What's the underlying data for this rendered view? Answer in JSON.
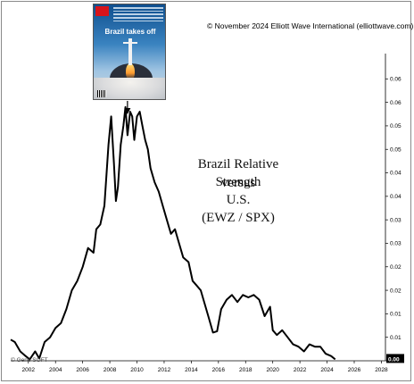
{
  "copyright": "© November 2024 Elliott Wave International (elliottwave.com)",
  "watermark": "© Gene SOFT",
  "annotation": {
    "lines": [
      "Brazil Relative Strength",
      "versus",
      "U.S.",
      "(EWZ / SPX)"
    ]
  },
  "cover": {
    "brand": "The Economist",
    "title": "Brazil takes off"
  },
  "colors": {
    "line": "#000000",
    "axis_box": "#222222"
  },
  "chart_data": {
    "type": "line",
    "title": "",
    "xlabel": "",
    "ylabel": "",
    "xlim": [
      2000.7,
      2028.3
    ],
    "ylim": [
      0.0,
      0.065
    ],
    "x_ticks": [
      "2002",
      "2004",
      "2006",
      "2008",
      "2010",
      "2012",
      "2014",
      "2016",
      "2018",
      "2020",
      "2022",
      "2024",
      "2026",
      "2028"
    ],
    "y_ticks": [
      "0.06",
      "0.06",
      "0.05",
      "0.05",
      "0.04",
      "0.04",
      "0.03",
      "0.03",
      "0.02",
      "0.02",
      "0.01",
      "0.01",
      "0.00"
    ],
    "y_tick_values": [
      0.06,
      0.055,
      0.05,
      0.045,
      0.04,
      0.035,
      0.03,
      0.025,
      0.02,
      0.015,
      0.01,
      0.005,
      0.0
    ],
    "last_value_label": "0.00",
    "series": [
      {
        "x": [
          2000.7,
          2001.0,
          2001.4,
          2001.8,
          2002.1,
          2002.5,
          2002.8,
          2003.2,
          2003.6,
          2004.0,
          2004.4,
          2004.8,
          2005.2,
          2005.6,
          2006.0,
          2006.4,
          2006.8,
          2007.0,
          2007.3,
          2007.6,
          2007.9,
          2008.1,
          2008.3,
          2008.45,
          2008.6,
          2008.8,
          2009.0,
          2009.15,
          2009.3,
          2009.5,
          2009.65,
          2009.8,
          2010.0,
          2010.2,
          2010.4,
          2010.6,
          2010.8,
          2011.0,
          2011.3,
          2011.6,
          2011.9,
          2012.2,
          2012.5,
          2012.8,
          2013.1,
          2013.4,
          2013.8,
          2014.1,
          2014.4,
          2014.7,
          2015.0,
          2015.3,
          2015.6,
          2015.9,
          2016.2,
          2016.6,
          2017.0,
          2017.4,
          2017.8,
          2018.2,
          2018.6,
          2019.0,
          2019.4,
          2019.8,
          2020.0,
          2020.3,
          2020.7,
          2021.1,
          2021.5,
          2021.9,
          2022.3,
          2022.7,
          2023.1,
          2023.5,
          2023.9,
          2024.3,
          2024.6
        ],
        "y": [
          0.0045,
          0.004,
          0.002,
          0.001,
          0.0003,
          0.002,
          0.0005,
          0.004,
          0.005,
          0.007,
          0.008,
          0.011,
          0.015,
          0.017,
          0.02,
          0.024,
          0.023,
          0.028,
          0.029,
          0.033,
          0.046,
          0.052,
          0.042,
          0.034,
          0.037,
          0.046,
          0.05,
          0.054,
          0.048,
          0.053,
          0.052,
          0.047,
          0.052,
          0.053,
          0.05,
          0.047,
          0.045,
          0.041,
          0.038,
          0.036,
          0.033,
          0.03,
          0.027,
          0.028,
          0.025,
          0.022,
          0.021,
          0.017,
          0.016,
          0.015,
          0.012,
          0.009,
          0.006,
          0.0063,
          0.011,
          0.013,
          0.014,
          0.0125,
          0.014,
          0.0135,
          0.014,
          0.013,
          0.0095,
          0.0115,
          0.0065,
          0.0055,
          0.0065,
          0.005,
          0.0035,
          0.003,
          0.002,
          0.0035,
          0.003,
          0.003,
          0.0015,
          0.001,
          0.0003
        ]
      }
    ],
    "annotation_marker": {
      "x": 2009.3,
      "label": "cover date arrow"
    },
    "grid": false,
    "y_axis_side": "right"
  }
}
